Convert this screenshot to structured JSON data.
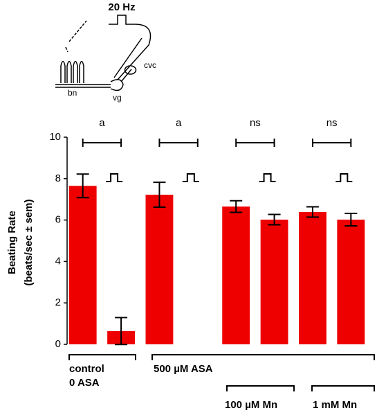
{
  "chart_data": {
    "type": "bar",
    "y_label_lines": [
      "Beating Rate",
      "(beats/sec ± sem)"
    ],
    "categories": [
      null,
      null,
      null,
      null,
      null,
      null,
      null,
      null
    ],
    "values": [
      7.65,
      0.64,
      7.22,
      null,
      6.65,
      6.02,
      6.39,
      6.02
    ],
    "errors": [
      0.57,
      0.65,
      0.6,
      null,
      0.28,
      0.25,
      0.25,
      0.3
    ],
    "color": "#ee0000",
    "ylim": [
      0,
      10
    ],
    "yticks": [
      0,
      2,
      4,
      6,
      8,
      10
    ],
    "annotations": [
      "a",
      "a",
      "ns",
      "ns"
    ],
    "condition_labels": [
      "control",
      "0 ASA",
      "500 µM ASA",
      "100 µM Mn",
      "1 mM Mn"
    ]
  },
  "diagram": {
    "stimulus": "20 Hz",
    "labels": [
      "cvc",
      "bn",
      "vg"
    ]
  }
}
